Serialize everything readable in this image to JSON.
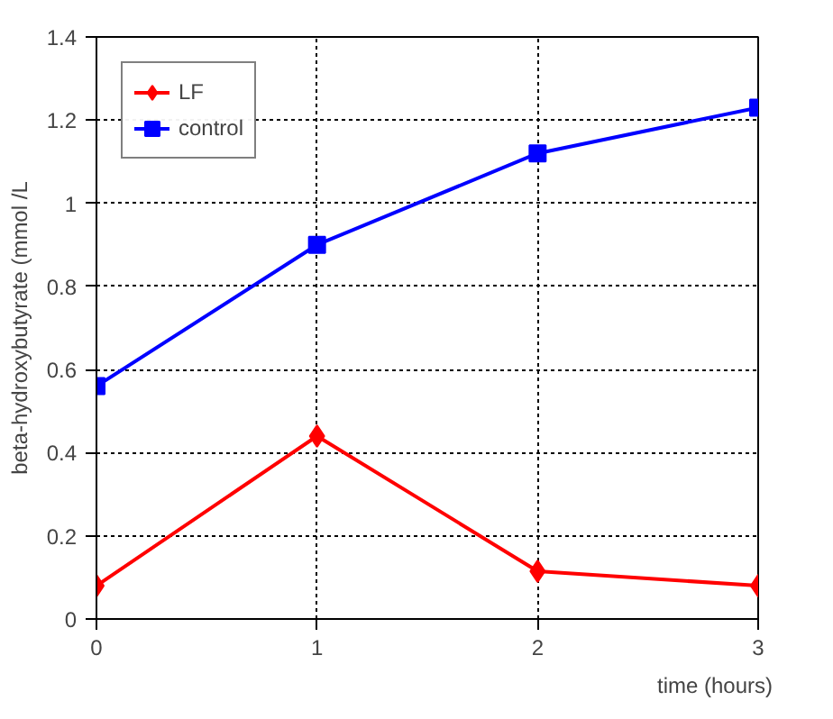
{
  "chart_data": {
    "type": "line",
    "xlabel": "time (hours)",
    "ylabel": "beta-hydroxybutyrate (mmol /L",
    "x": [
      0,
      1,
      2,
      3
    ],
    "series": [
      {
        "name": "LF",
        "color": "#ff0000",
        "values": [
          0.08,
          0.44,
          0.115,
          0.08
        ],
        "marker": "diamond"
      },
      {
        "name": "control",
        "color": "#0000ff",
        "values": [
          0.56,
          0.9,
          1.12,
          1.23
        ],
        "marker": "square"
      }
    ],
    "xlim": [
      0,
      3
    ],
    "xticks": [
      0,
      1,
      2,
      3
    ],
    "ylim": [
      0,
      1.4
    ],
    "yticks": [
      0,
      0.2,
      0.4,
      0.6,
      0.8,
      1,
      1.2,
      1.4
    ],
    "grid": true,
    "legend": "top left",
    "line_style": "solid"
  }
}
